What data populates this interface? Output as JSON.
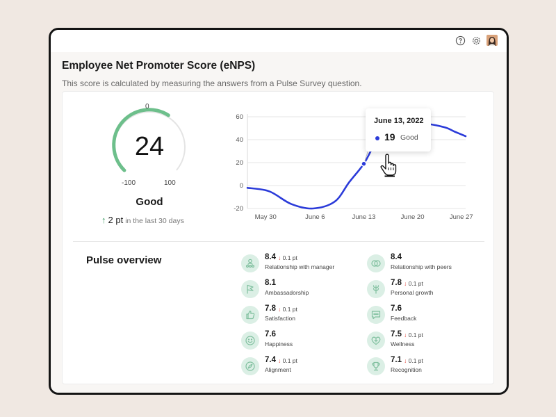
{
  "page": {
    "title": "Employee Net Promoter Score (eNPS)",
    "subtitle": "This score is calculated by measuring the answers from a Pulse Survey question."
  },
  "topbar": {
    "icons": [
      "help-icon",
      "settings-icon",
      "avatar"
    ]
  },
  "gauge": {
    "score": "24",
    "min_label": "-100",
    "max_label": "100",
    "zero_label": "0",
    "rating": "Good",
    "fill_fraction": 0.62,
    "color": "#6dbf8b",
    "trend": {
      "arrow": "↑",
      "value": "2 pt",
      "description": "in the last 30 days"
    }
  },
  "chart_data": {
    "type": "line",
    "x": [
      0,
      3,
      6,
      9,
      12,
      14,
      16,
      18,
      21,
      24,
      27,
      28.5,
      30
    ],
    "x_ticks": [
      "May 30",
      "June 6",
      "June 13",
      "June 20",
      "June 27"
    ],
    "series": [
      {
        "values": [
          -2,
          -5,
          -16,
          -20,
          -14,
          3,
          19,
          40,
          50,
          54,
          51,
          47,
          43
        ],
        "color": "#2b3bd9"
      }
    ],
    "ylim": [
      -20,
      60
    ],
    "y_ticks": [
      60,
      40,
      20,
      0,
      -20
    ],
    "grid": true,
    "tooltip": {
      "date": "June 13, 2022",
      "value": "19",
      "label": "Good"
    }
  },
  "pulse": {
    "title": "Pulse overview",
    "metrics": [
      {
        "value": "8.4",
        "delta": "0.1 pt",
        "label": "Relationship with manager",
        "icon": "people-icon"
      },
      {
        "value": "8.4",
        "delta": "",
        "label": "Relationship with peers",
        "icon": "peers-icon"
      },
      {
        "value": "8.1",
        "delta": "",
        "label": "Ambassadorship",
        "icon": "flag-icon"
      },
      {
        "value": "7.8",
        "delta": "0.1 pt",
        "label": "Personal growth",
        "icon": "growth-icon"
      },
      {
        "value": "7.8",
        "delta": "0.1 pt",
        "label": "Satisfaction",
        "icon": "thumbs-up-icon"
      },
      {
        "value": "7.6",
        "delta": "",
        "label": "Feedback",
        "icon": "chat-icon"
      },
      {
        "value": "7.6",
        "delta": "",
        "label": "Happiness",
        "icon": "smiley-icon"
      },
      {
        "value": "7.5",
        "delta": "0.1 pt",
        "label": "Wellness",
        "icon": "heart-icon"
      },
      {
        "value": "7.4",
        "delta": "0.1 pt",
        "label": "Alignment",
        "icon": "compass-icon"
      },
      {
        "value": "7.1",
        "delta": "0.1 pt",
        "label": "Recognition",
        "icon": "trophy-icon"
      }
    ]
  },
  "colors": {
    "accent_green": "#6dbf8b",
    "line_blue": "#2b3bd9",
    "decline_red": "#e0453a",
    "icon_bg": "#dbefe5"
  }
}
